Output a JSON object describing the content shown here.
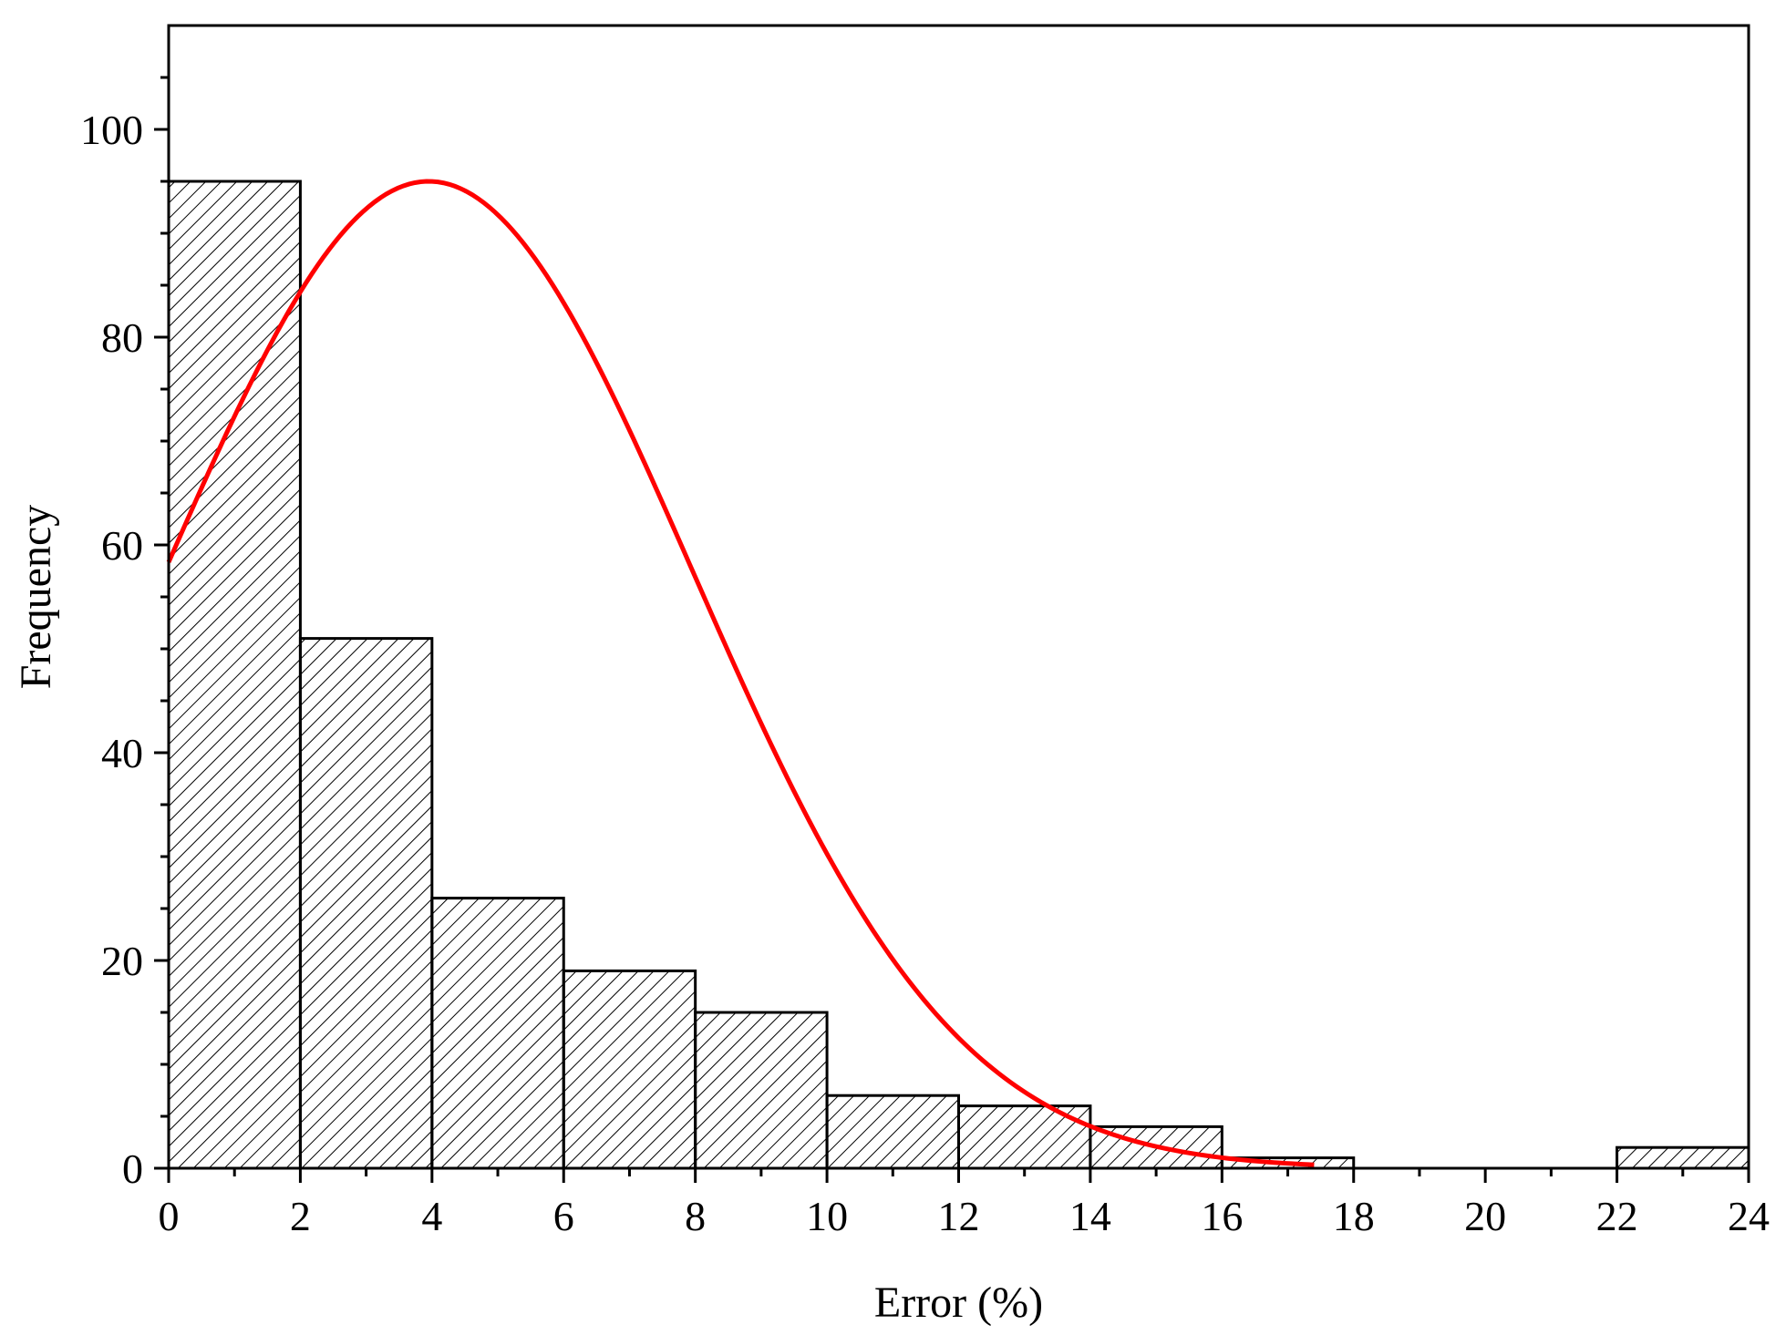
{
  "chart_data": {
    "type": "bar",
    "subtype": "histogram",
    "xlabel": "Error (%)",
    "ylabel": "Frequency",
    "xlim": [
      0,
      24
    ],
    "ylim": [
      0,
      110
    ],
    "x_ticks": [
      0,
      2,
      4,
      6,
      8,
      10,
      12,
      14,
      16,
      18,
      20,
      22,
      24
    ],
    "y_ticks": [
      0,
      20,
      40,
      60,
      80,
      100
    ],
    "grid": false,
    "legend": "none",
    "bins": [
      {
        "x0": 0,
        "x1": 2,
        "value": 95
      },
      {
        "x0": 2,
        "x1": 4,
        "value": 51
      },
      {
        "x0": 4,
        "x1": 6,
        "value": 26
      },
      {
        "x0": 6,
        "x1": 8,
        "value": 19
      },
      {
        "x0": 8,
        "x1": 10,
        "value": 15
      },
      {
        "x0": 10,
        "x1": 12,
        "value": 7
      },
      {
        "x0": 12,
        "x1": 14,
        "value": 6
      },
      {
        "x0": 14,
        "x1": 16,
        "value": 4
      },
      {
        "x0": 16,
        "x1": 18,
        "value": 1
      },
      {
        "x0": 18,
        "x1": 20,
        "value": 0
      },
      {
        "x0": 20,
        "x1": 22,
        "value": 0
      },
      {
        "x0": 22,
        "x1": 24,
        "value": 2
      }
    ],
    "fit_curve": {
      "type": "normal",
      "peak_x": 3.95,
      "peak_y": 95,
      "sigma": 4.0,
      "x_range": [
        0,
        17.4
      ],
      "color": "#ff0000"
    },
    "bar_fill": "hatched",
    "bar_edge_color": "#000000"
  }
}
